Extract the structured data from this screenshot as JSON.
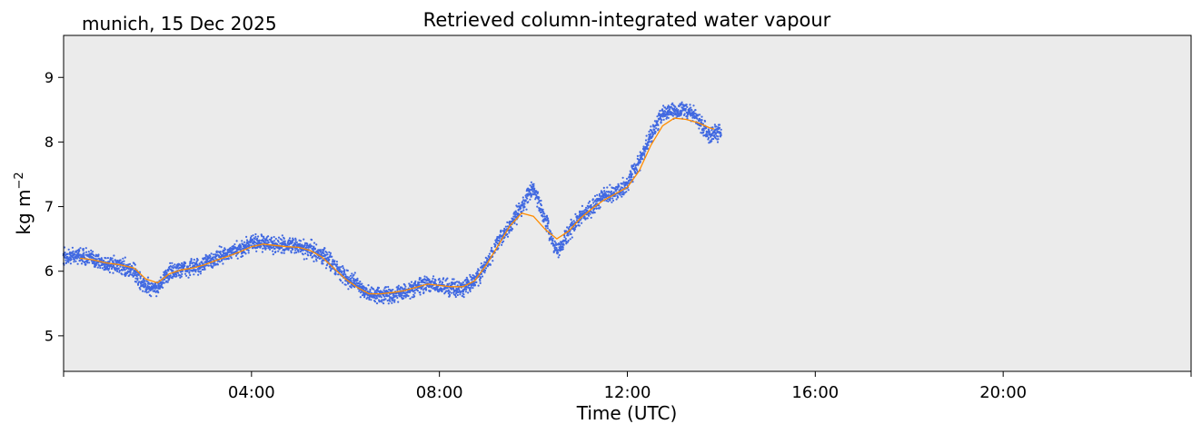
{
  "header": {
    "location_date": "munich, 15 Dec 2025"
  },
  "colors": {
    "plot_background": "#ebebeb",
    "scatter": "#4169e1",
    "smoothed_line": "#ff8c00",
    "axes": "#000000"
  },
  "chart_data": {
    "type": "scatter",
    "title": "Retrieved column-integrated water vapour",
    "xlabel": "Time (UTC)",
    "ylabel": "kg m",
    "ylabel_superscript": "−2",
    "xlim": [
      "00:00",
      "24:00"
    ],
    "ylim": [
      4.45,
      9.65
    ],
    "xticks": [
      {
        "hour": 0,
        "label": ""
      },
      {
        "hour": 4,
        "label": "04:00"
      },
      {
        "hour": 8,
        "label": "08:00"
      },
      {
        "hour": 12,
        "label": "12:00"
      },
      {
        "hour": 16,
        "label": "16:00"
      },
      {
        "hour": 20,
        "label": "20:00"
      },
      {
        "hour": 24,
        "label": ""
      }
    ],
    "yticks": [
      5,
      6,
      7,
      8,
      9
    ],
    "grid": false,
    "series": [
      {
        "kind": "scatter",
        "x_hours": [
          0.0,
          0.25,
          0.5,
          0.75,
          1.0,
          1.25,
          1.5,
          1.75,
          2.0,
          2.25,
          2.5,
          2.75,
          3.0,
          3.25,
          3.5,
          3.75,
          4.0,
          4.25,
          4.5,
          4.75,
          5.0,
          5.25,
          5.5,
          5.75,
          6.0,
          6.25,
          6.5,
          6.75,
          7.0,
          7.25,
          7.5,
          7.75,
          8.0,
          8.25,
          8.5,
          8.75,
          9.0,
          9.25,
          9.5,
          9.75,
          10.0,
          10.25,
          10.5,
          10.75,
          11.0,
          11.25,
          11.5,
          11.75,
          12.0,
          12.25,
          12.5,
          12.75,
          13.0,
          13.25,
          13.5,
          13.75,
          14.0
        ],
        "y": [
          6.2,
          6.25,
          6.22,
          6.15,
          6.1,
          6.08,
          6.0,
          5.75,
          5.75,
          5.98,
          6.03,
          6.05,
          6.12,
          6.2,
          6.27,
          6.33,
          6.45,
          6.43,
          6.4,
          6.4,
          6.38,
          6.33,
          6.25,
          6.1,
          5.9,
          5.8,
          5.63,
          5.63,
          5.65,
          5.68,
          5.75,
          5.8,
          5.77,
          5.75,
          5.73,
          5.85,
          6.1,
          6.45,
          6.7,
          7.0,
          7.3,
          6.8,
          6.3,
          6.6,
          6.85,
          7.0,
          7.15,
          7.22,
          7.35,
          7.7,
          8.1,
          8.45,
          8.5,
          8.5,
          8.35,
          8.1,
          8.15
        ]
      },
      {
        "kind": "line",
        "x_hours": [
          0.35,
          0.6,
          0.9,
          1.2,
          1.5,
          1.75,
          2.0,
          2.25,
          2.5,
          2.75,
          3.0,
          3.25,
          3.5,
          3.75,
          4.0,
          4.25,
          4.5,
          4.75,
          5.0,
          5.25,
          5.5,
          5.75,
          6.0,
          6.25,
          6.5,
          6.75,
          7.0,
          7.25,
          7.5,
          7.75,
          8.0,
          8.25,
          8.5,
          8.75,
          9.0,
          9.25,
          9.5,
          9.75,
          10.0,
          10.25,
          10.5,
          10.75,
          11.0,
          11.25,
          11.5,
          11.75,
          12.0,
          12.25,
          12.5,
          12.75,
          13.0,
          13.25,
          13.5,
          13.75,
          13.85
        ],
        "y": [
          6.2,
          6.18,
          6.13,
          6.1,
          6.05,
          5.88,
          5.82,
          5.96,
          6.02,
          6.05,
          6.1,
          6.17,
          6.23,
          6.3,
          6.38,
          6.42,
          6.4,
          6.38,
          6.37,
          6.32,
          6.22,
          6.05,
          5.88,
          5.75,
          5.65,
          5.65,
          5.67,
          5.7,
          5.75,
          5.8,
          5.78,
          5.76,
          5.76,
          5.85,
          6.1,
          6.4,
          6.7,
          6.9,
          6.85,
          6.65,
          6.5,
          6.62,
          6.82,
          6.97,
          7.1,
          7.2,
          7.3,
          7.55,
          7.95,
          8.25,
          8.37,
          8.35,
          8.3,
          8.22,
          8.2
        ]
      }
    ]
  }
}
